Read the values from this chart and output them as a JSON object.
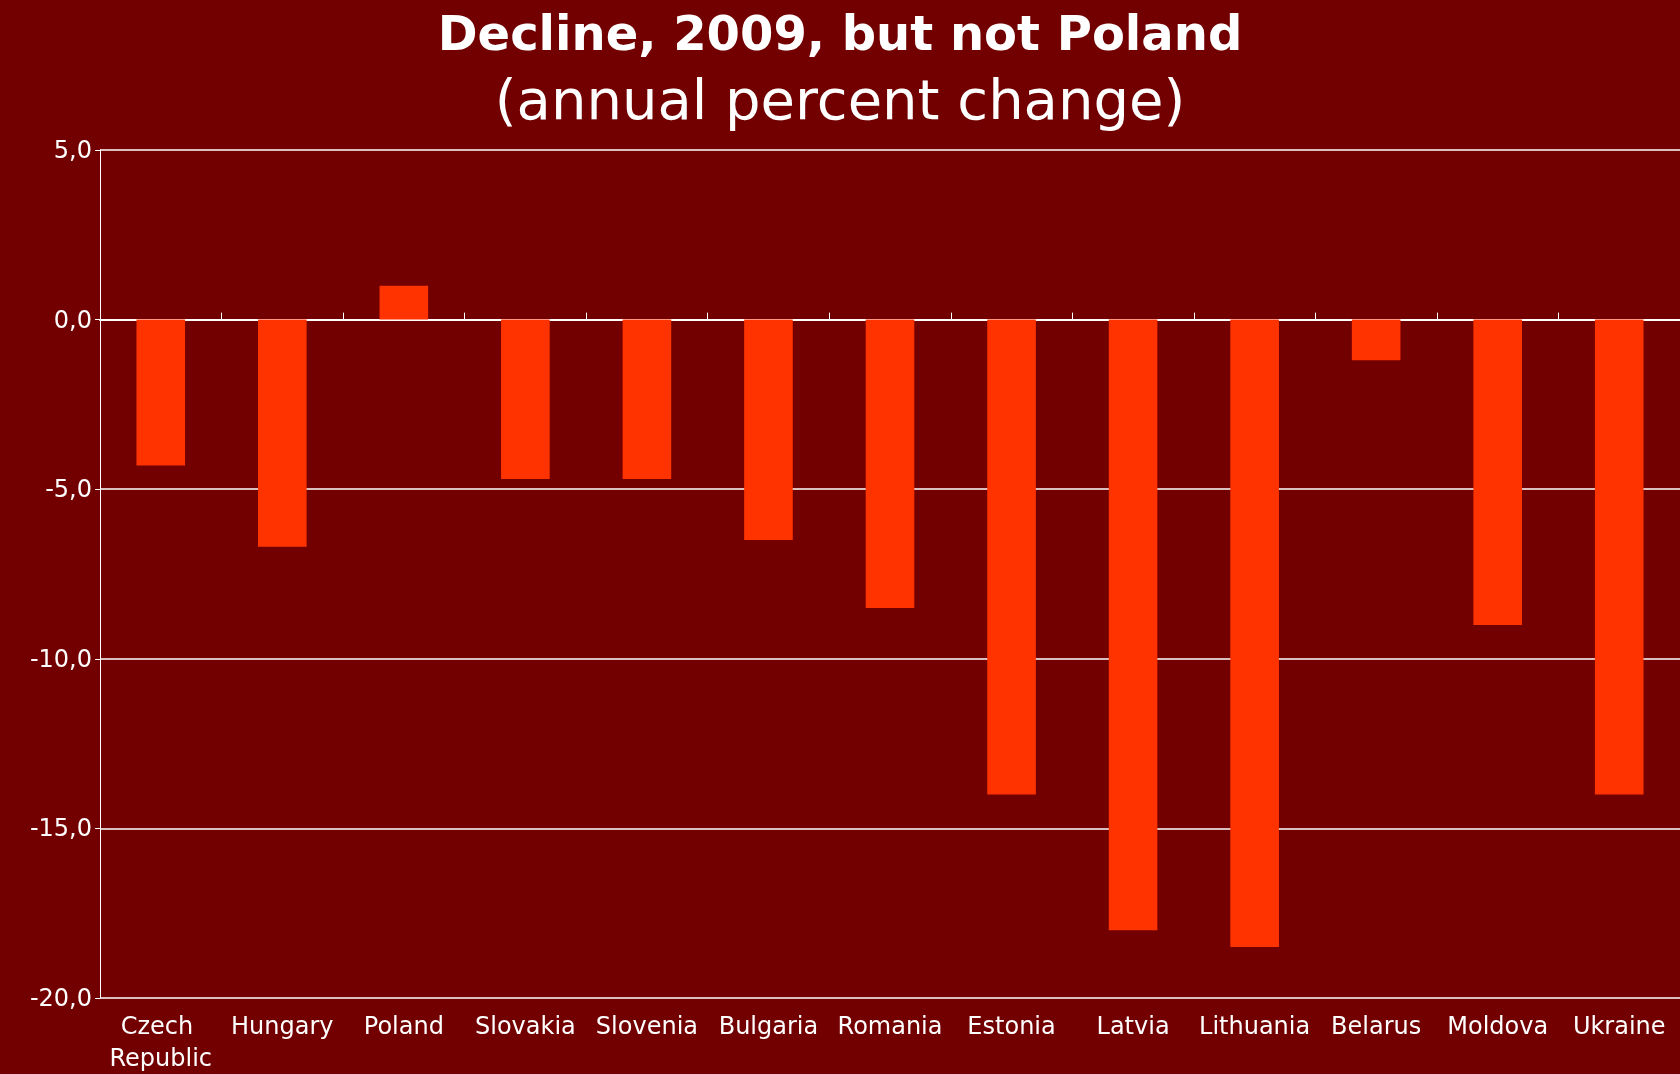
{
  "chart_data": {
    "type": "bar",
    "title": "Decline, 2009, but not Poland",
    "subtitle": "(annual percent change)",
    "categories": [
      "Czech Republic",
      "Hungary",
      "Poland",
      "Slovakia",
      "Slovenia",
      "Bulgaria",
      "Romania",
      "Estonia",
      "Latvia",
      "Lithuania",
      "Belarus",
      "Moldova",
      "Ukraine"
    ],
    "values": [
      -4.3,
      -6.7,
      1.0,
      -4.7,
      -4.7,
      -6.5,
      -8.5,
      -14.0,
      -18.0,
      -18.5,
      -1.2,
      -9.0,
      -14.0
    ],
    "color": "#ff3300",
    "ylim": [
      -20,
      5
    ],
    "yticks": [
      {
        "value": 5,
        "label": "5,0"
      },
      {
        "value": 0,
        "label": "0,0"
      },
      {
        "value": -5,
        "label": "-5,0"
      },
      {
        "value": -10,
        "label": "-10,0"
      },
      {
        "value": -15,
        "label": "-15,0"
      },
      {
        "value": -20,
        "label": "-20,0"
      }
    ],
    "grid": "y"
  }
}
